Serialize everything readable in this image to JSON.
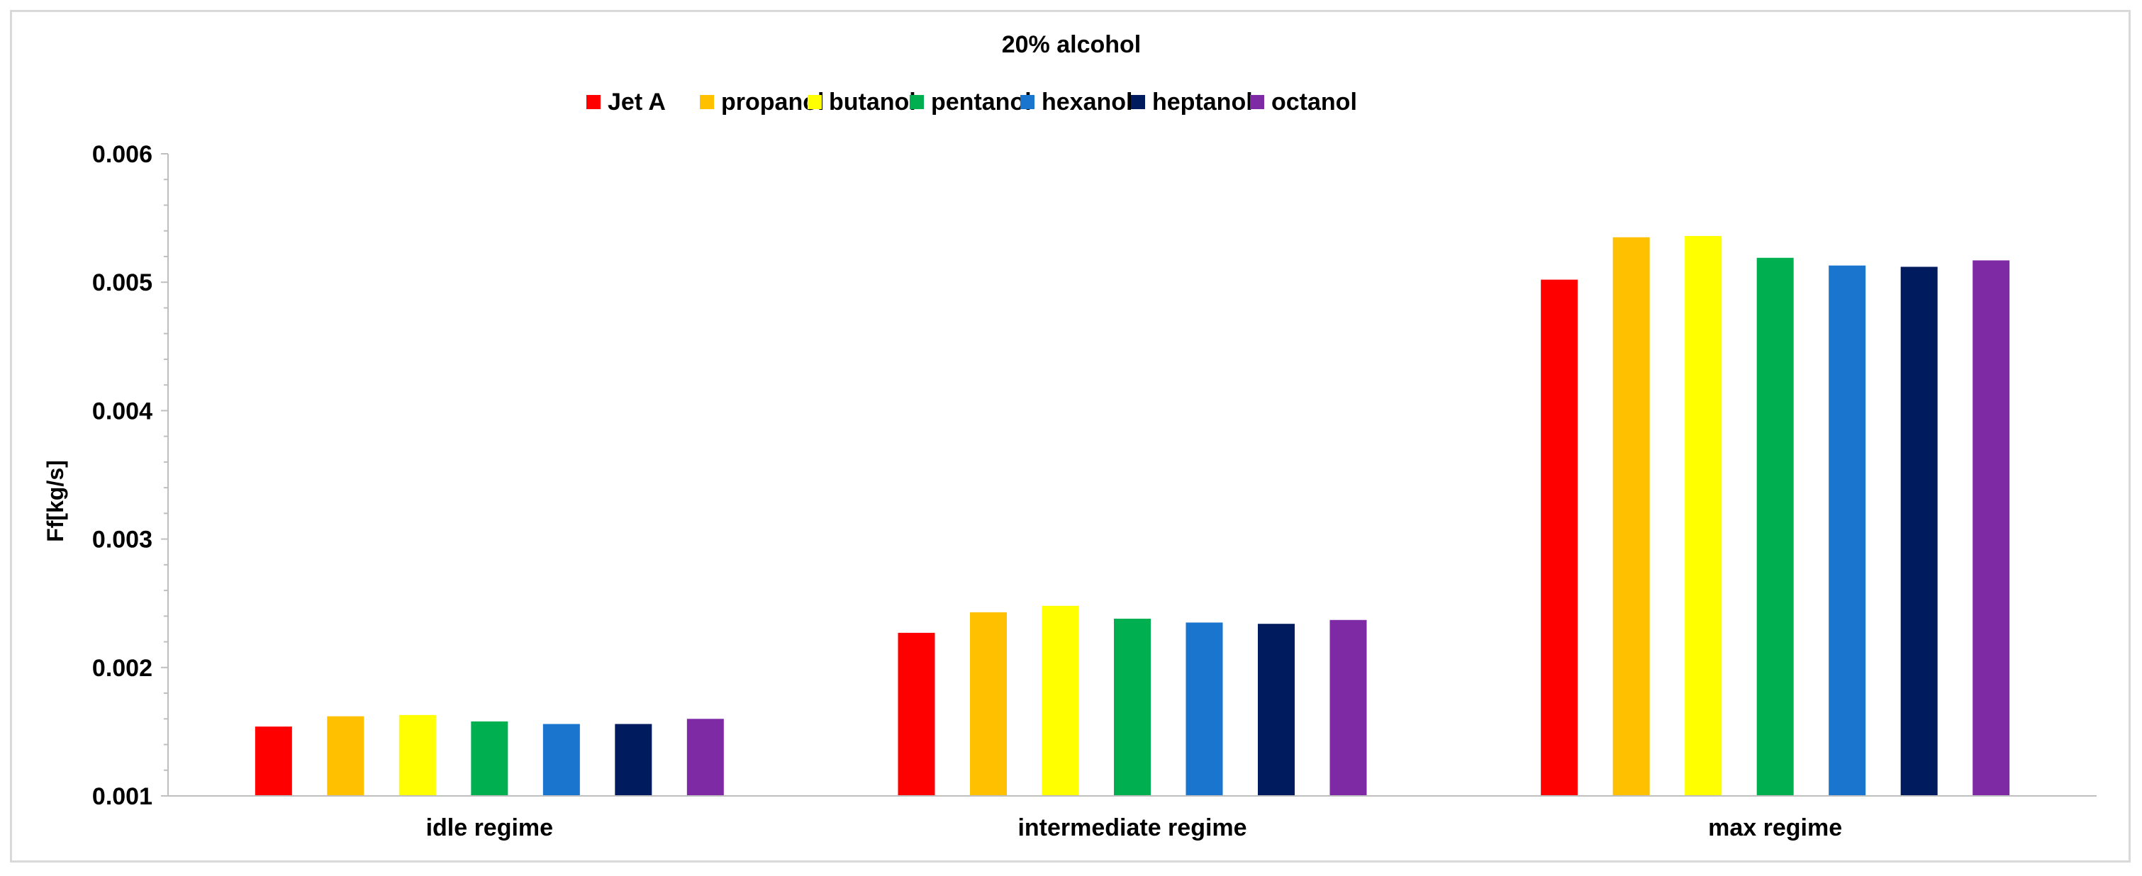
{
  "chart_data": {
    "type": "bar",
    "title": "20% alcohol",
    "ylabel": "Ff[kg/s]",
    "xlabel": "",
    "categories": [
      "idle regime",
      "intermediate regime",
      "max regime"
    ],
    "ylim": [
      0.001,
      0.006
    ],
    "yticks": [
      "0.001",
      "0.002",
      "0.003",
      "0.004",
      "0.005",
      "0.006"
    ],
    "ytick_values": [
      0.001,
      0.002,
      0.003,
      0.004,
      0.005,
      0.006
    ],
    "grid": false,
    "legend_position": "top",
    "series": [
      {
        "name": "Jet A",
        "color": "#ff0000",
        "values": [
          0.00154,
          0.00227,
          0.00502
        ]
      },
      {
        "name": "propanol",
        "color": "#ffc000",
        "values": [
          0.00162,
          0.00243,
          0.00535
        ]
      },
      {
        "name": "butanol",
        "color": "#ffff00",
        "values": [
          0.00163,
          0.00248,
          0.00536
        ]
      },
      {
        "name": "pentanol",
        "color": "#00b050",
        "values": [
          0.00158,
          0.00238,
          0.00519
        ]
      },
      {
        "name": "hexanol",
        "color": "#1a75cf",
        "values": [
          0.00156,
          0.00235,
          0.00513
        ]
      },
      {
        "name": "heptanol",
        "color": "#001c5e",
        "values": [
          0.00156,
          0.00234,
          0.00512
        ]
      },
      {
        "name": "octanol",
        "color": "#7f2aa5",
        "values": [
          0.0016,
          0.00237,
          0.00517
        ]
      }
    ]
  }
}
